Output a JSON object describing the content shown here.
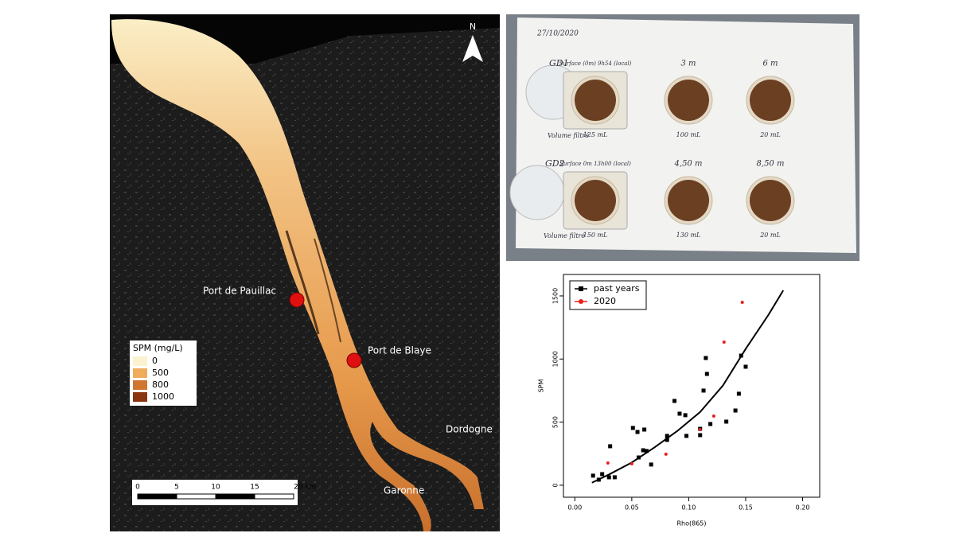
{
  "map": {
    "north": "N",
    "places": [
      "Port de Pauillac",
      "Port de Blaye",
      "Dordogne",
      "Garonne"
    ],
    "legend": {
      "title": "SPM (mg/L)",
      "entries": [
        {
          "label": "0",
          "color": "#fbf3cf"
        },
        {
          "label": "500",
          "color": "#efad5c"
        },
        {
          "label": "800",
          "color": "#cf7630"
        },
        {
          "label": "1000",
          "color": "#8a3410"
        }
      ]
    },
    "scale": [
      "0",
      "5",
      "10",
      "15",
      "20 km"
    ]
  },
  "photo": {
    "date": "27/10/2020",
    "rows": [
      {
        "station": "GD1",
        "volume_note": "Volume filtré",
        "samples": [
          {
            "depth": "Surface (0m) 9h54 (local)",
            "volume": "125 mL"
          },
          {
            "depth": "3 m",
            "volume": "100 mL"
          },
          {
            "depth": "6 m",
            "volume": "20 mL"
          }
        ]
      },
      {
        "station": "GD2",
        "volume_note": "Volume filtré",
        "samples": [
          {
            "depth": "Surface 0m 13h00 (local)",
            "volume": "150 mL"
          },
          {
            "depth": "4,50 m",
            "volume": "130 mL"
          },
          {
            "depth": "8,50 m",
            "volume": "20 mL"
          }
        ]
      }
    ]
  },
  "chart_data": {
    "type": "scatter",
    "x_label": "Rho(865)",
    "y_label": "SPM",
    "xlim": [
      -0.01,
      0.215
    ],
    "ylim": [
      -95,
      1670
    ],
    "xticks": [
      {
        "value": 0,
        "label": "0.00"
      },
      {
        "value": 0.05,
        "label": "0.05"
      },
      {
        "value": 0.1,
        "label": "0.10"
      },
      {
        "value": 0.15,
        "label": "0.15"
      },
      {
        "value": 0.2,
        "label": "0.20"
      }
    ],
    "yticks": [
      0,
      500,
      1000,
      1500
    ],
    "legend": "top-left",
    "series": [
      {
        "name": "past years",
        "color": "#000000",
        "marker": "square",
        "x": [
          0.016,
          0.021,
          0.024,
          0.03,
          0.031,
          0.035,
          0.051,
          0.055,
          0.056,
          0.061,
          0.06,
          0.063,
          0.067,
          0.081,
          0.081,
          0.0875,
          0.092,
          0.097,
          0.098,
          0.11,
          0.11,
          0.113,
          0.115,
          0.116,
          0.119,
          0.133,
          0.141,
          0.144,
          0.146,
          0.15
        ],
        "values": [
          76,
          44,
          88,
          63,
          309,
          63,
          454,
          422,
          220,
          441,
          277,
          271,
          164,
          359,
          391,
          668,
          567,
          555,
          391,
          397,
          447,
          750,
          1008,
          882,
          485,
          504,
          592,
          725,
          1027,
          939
        ]
      },
      {
        "name": "2020",
        "color": "#e8201c",
        "marker": "circle",
        "x": [
          0.029,
          0.05,
          0.08,
          0.11,
          0.122,
          0.131,
          0.147
        ],
        "values": [
          176,
          170,
          246,
          441,
          548,
          1134,
          1449
        ]
      }
    ],
    "curve": {
      "color": "#000000",
      "x": [
        0.015,
        0.03,
        0.05,
        0.07,
        0.09,
        0.11,
        0.13,
        0.15,
        0.17,
        0.183
      ],
      "values": [
        20,
        85,
        180,
        300,
        430,
        580,
        790,
        1080,
        1350,
        1544
      ]
    }
  }
}
